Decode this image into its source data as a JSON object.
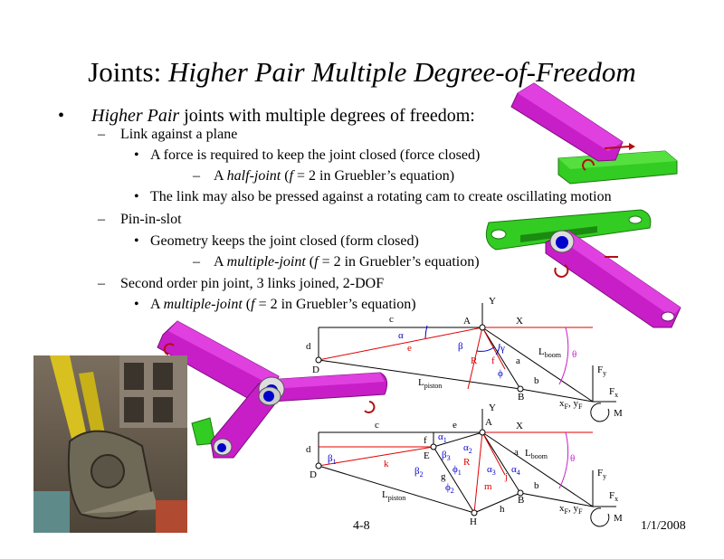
{
  "slide": {
    "title_plain": "Joints: ",
    "title_italic": "Higher Pair Multiple Degree-of-Freedom",
    "bullets": {
      "l1_italic": "Higher Pair",
      "l1_rest": " joints with multiple degrees of freedom:",
      "l2a": "Link against a plane",
      "l3a": "A force is required to keep the joint closed (force closed)",
      "l4a_pre": "A ",
      "l4a_it": "half-joint",
      "l4a_mid": " (",
      "l4a_f": "f",
      "l4a_rest": " = 2 in Gruebler’s equation)",
      "l3b": "The link may also be pressed against a rotating cam to create oscillating motion",
      "l2b": "Pin-in-slot",
      "l3c": "Geometry keeps the joint closed (form closed)",
      "l4b_pre": "A ",
      "l4b_it": "multiple-joint",
      "l4b_mid": " (",
      "l4b_f": "f",
      "l4b_rest": " = 2 in Gruebler’s equation)",
      "l2c": "Second order pin joint, 3 links joined, 2-DOF",
      "l3d_pre": "A ",
      "l3d_it": "multiple-joint",
      "l3d_mid": " (",
      "l3d_f": "f",
      "l3d_rest": " = 2 in Gruebler’s equation)"
    },
    "footer": {
      "page": "4-8",
      "date": "1/1/2008"
    },
    "diagram1": {
      "labels": [
        "Y",
        "X",
        "A",
        "c",
        "d",
        "D",
        "e",
        "α",
        "β",
        "γ",
        "R",
        "f",
        "a",
        "ϕ",
        "b",
        "B",
        "L",
        "boom",
        "θ",
        "F",
        "y",
        "F",
        "x",
        "L",
        "piston",
        "x",
        "F",
        ", y",
        "F",
        "M"
      ]
    },
    "diagram2": {
      "labels": [
        "Y",
        "X",
        "A",
        "c",
        "e",
        "d",
        "D",
        "f",
        "α",
        "1",
        "α",
        "2",
        "β",
        "1",
        "β",
        "3",
        "E",
        "R",
        "k",
        "β",
        "2",
        "ϕ",
        "1",
        "g",
        "α",
        "3",
        "ϕ",
        "2",
        "m",
        "j",
        "α",
        "4",
        "a",
        "L",
        "boom",
        "θ",
        "F",
        "y",
        "F",
        "x",
        "b",
        "B",
        "L",
        "piston",
        "H",
        "h",
        "x",
        "F",
        ", y",
        "F",
        "M"
      ]
    }
  },
  "colors": {
    "magenta_link": "#c81ec8",
    "green_link": "#33cc22",
    "red": "#e00000",
    "blue": "#0000cc",
    "force_arrow": "#b01010"
  }
}
